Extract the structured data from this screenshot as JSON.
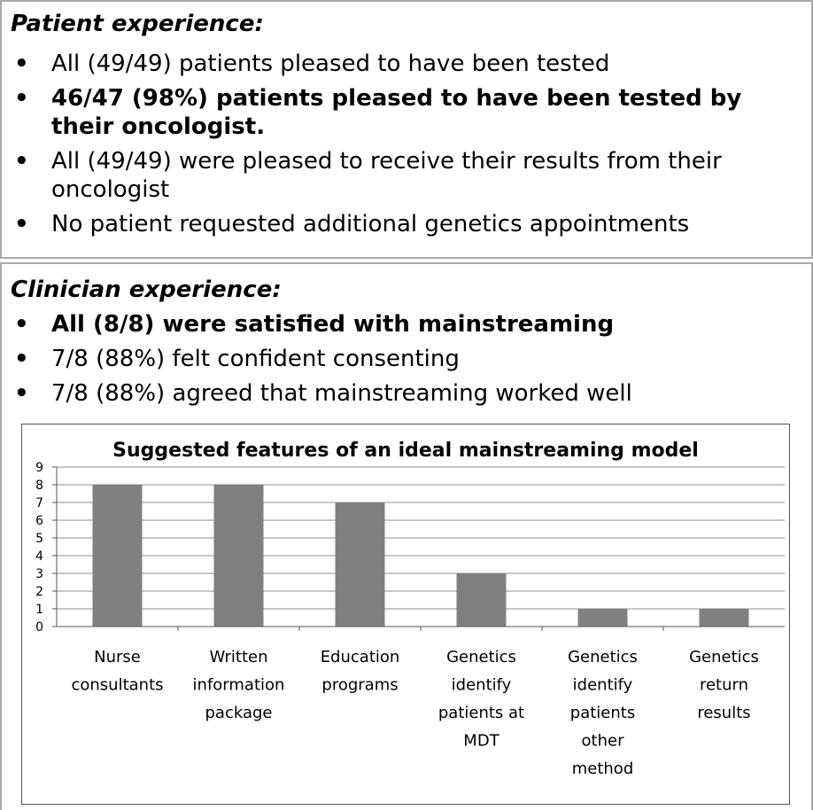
{
  "patient": {
    "heading": "Patient experience:",
    "bullets": [
      {
        "text": "All (49/49) patients pleased to have been tested",
        "bold": false
      },
      {
        "text": "46/47 (98%) patients pleased to have been tested by their oncologist.",
        "bold": true
      },
      {
        "text": "All (49/49) were pleased to receive their results from their oncologist",
        "bold": false
      },
      {
        "text": "No patient requested additional genetics appointments",
        "bold": false
      }
    ]
  },
  "clinician": {
    "heading": "Clinician experience:",
    "bullets": [
      {
        "text": "All (8/8) were satisfied with mainstreaming",
        "bold": true
      },
      {
        "text": "7/8 (88%) felt confident consenting",
        "bold": false
      },
      {
        "text": "7/8 (88%) agreed that mainstreaming worked well",
        "bold": false
      }
    ]
  },
  "chart_data": {
    "type": "bar",
    "title": "Suggested features of an ideal mainstreaming model",
    "categories": [
      [
        "Nurse",
        "consultants"
      ],
      [
        "Written",
        "information",
        "package"
      ],
      [
        "Education",
        "programs"
      ],
      [
        "Genetics",
        "identify",
        "patients at",
        "MDT"
      ],
      [
        "Genetics",
        "identify",
        "patients",
        "other",
        "method"
      ],
      [
        "Genetics",
        "return",
        "results"
      ]
    ],
    "values": [
      8,
      8,
      7,
      3,
      1,
      1
    ],
    "ylim": [
      0,
      9
    ],
    "yticks": [
      0,
      1,
      2,
      3,
      4,
      5,
      6,
      7,
      8,
      9
    ],
    "grid": true,
    "bar_color": "#808080",
    "grid_color": "#8c8c8c"
  }
}
